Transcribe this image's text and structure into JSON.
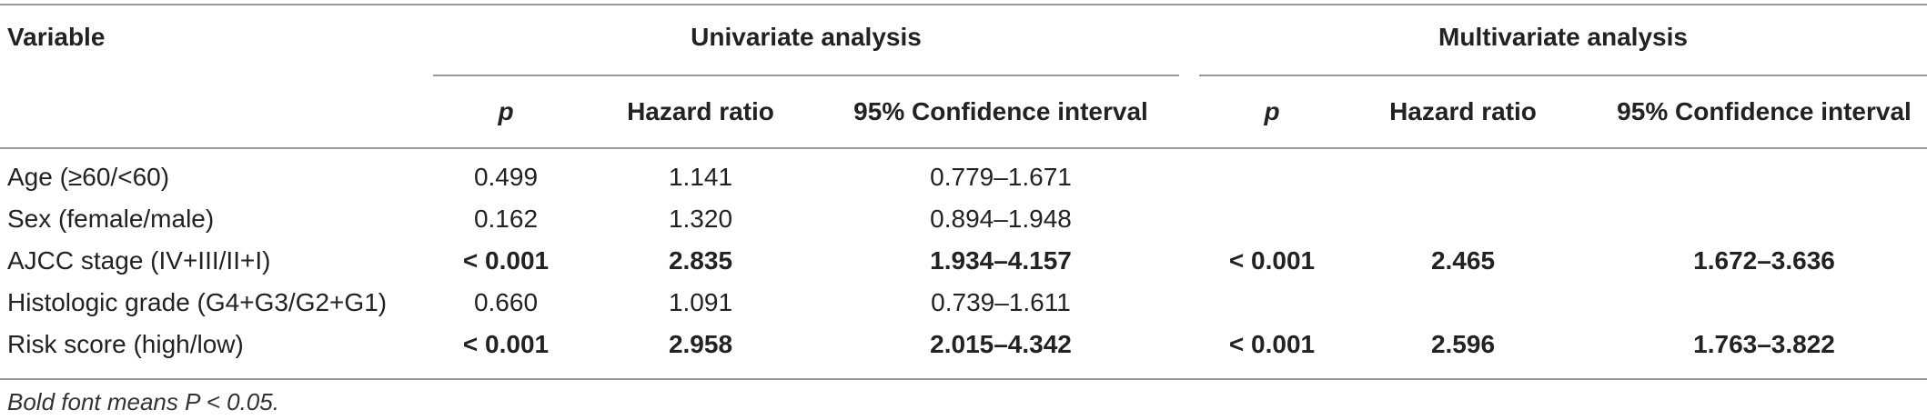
{
  "table": {
    "header": {
      "variable": "Variable",
      "univariate": "Univariate analysis",
      "multivariate": "Multivariate analysis",
      "sub": {
        "p": "p",
        "hr": "Hazard ratio",
        "ci": "95% Confidence interval"
      }
    },
    "rows": [
      {
        "variable": "Age (≥60/<60)",
        "uni_p": "0.499",
        "uni_hr": "1.141",
        "uni_ci": "0.779–1.671",
        "multi_p": "",
        "multi_hr": "",
        "multi_ci": ""
      },
      {
        "variable": "Sex (female/male)",
        "uni_p": "0.162",
        "uni_hr": "1.320",
        "uni_ci": "0.894–1.948",
        "multi_p": "",
        "multi_hr": "",
        "multi_ci": ""
      },
      {
        "variable": "AJCC stage (IV+III/II+I)",
        "uni_p": "< 0.001",
        "uni_hr": "2.835",
        "uni_ci": "1.934–4.157",
        "multi_p": "< 0.001",
        "multi_hr": "2.465",
        "multi_ci": "1.672–3.636"
      },
      {
        "variable": "Histologic grade (G4+G3/G2+G1)",
        "uni_p": "0.660",
        "uni_hr": "1.091",
        "uni_ci": "0.739–1.611",
        "multi_p": "",
        "multi_hr": "",
        "multi_ci": ""
      },
      {
        "variable": "Risk score (high/low)",
        "uni_p": "< 0.001",
        "uni_hr": "2.958",
        "uni_ci": "2.015–4.342",
        "multi_p": "< 0.001",
        "multi_hr": "2.596",
        "multi_ci": "1.763–3.822"
      }
    ],
    "footnote": "Bold font means P < 0.05."
  }
}
